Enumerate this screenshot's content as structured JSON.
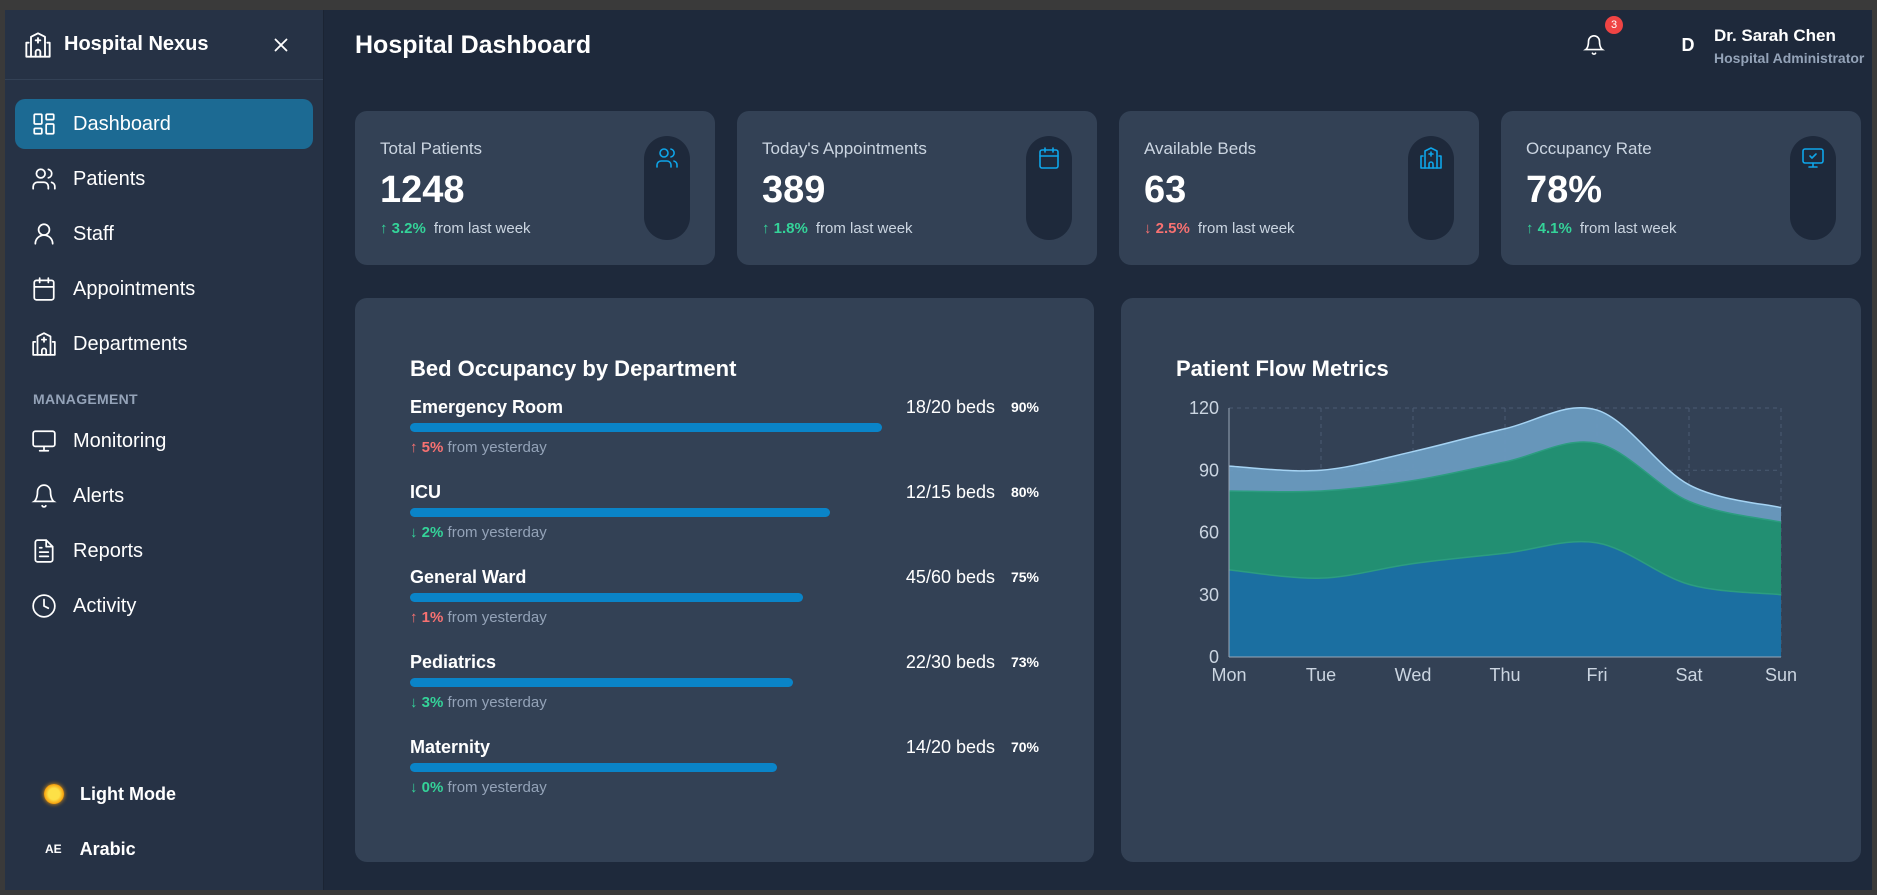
{
  "sidebar": {
    "brand": "Hospital Nexus",
    "items": [
      {
        "label": "Dashboard",
        "icon": "dashboard-icon",
        "active": true
      },
      {
        "label": "Patients",
        "icon": "patients-icon"
      },
      {
        "label": "Staff",
        "icon": "staff-icon"
      },
      {
        "label": "Appointments",
        "icon": "calendar-icon"
      },
      {
        "label": "Departments",
        "icon": "building-icon"
      }
    ],
    "section_label": "MANAGEMENT",
    "management": [
      {
        "label": "Monitoring",
        "icon": "monitor-icon"
      },
      {
        "label": "Alerts",
        "icon": "bell-icon"
      },
      {
        "label": "Reports",
        "icon": "report-icon"
      },
      {
        "label": "Activity",
        "icon": "clock-icon"
      }
    ],
    "theme_toggle": "Light Mode",
    "language_code": "AE",
    "language": "Arabic"
  },
  "header": {
    "title": "Hospital Dashboard",
    "notification_count": "3",
    "avatar_initial": "D",
    "user_name": "Dr. Sarah Chen",
    "user_role": "Hospital Administrator"
  },
  "stats": [
    {
      "label": "Total Patients",
      "value": "1248",
      "change": "↑ 3.2%",
      "direction": "up",
      "suffix": "from last week",
      "icon": "users-icon"
    },
    {
      "label": "Today's Appointments",
      "value": "389",
      "change": "↑ 1.8%",
      "direction": "up",
      "suffix": "from last week",
      "icon": "calendar-icon"
    },
    {
      "label": "Available Beds",
      "value": "63",
      "change": "↓ 2.5%",
      "direction": "down",
      "suffix": "from last week",
      "icon": "hospital-icon"
    },
    {
      "label": "Occupancy Rate",
      "value": "78%",
      "change": "↑ 4.1%",
      "direction": "up",
      "suffix": "from last week",
      "icon": "monitor-check-icon"
    }
  ],
  "beds_panel": {
    "title": "Bed Occupancy by Department",
    "departments": [
      {
        "name": "Emergency Room",
        "beds": "18/20 beds",
        "pct": "90%",
        "fill": 0.9,
        "change": "↑ 5%",
        "dir": "up",
        "suffix": "from yesterday"
      },
      {
        "name": "ICU",
        "beds": "12/15 beds",
        "pct": "80%",
        "fill": 0.8,
        "change": "↓ 2%",
        "dir": "down",
        "suffix": "from yesterday"
      },
      {
        "name": "General Ward",
        "beds": "45/60 beds",
        "pct": "75%",
        "fill": 0.75,
        "change": "↑ 1%",
        "dir": "up",
        "suffix": "from yesterday"
      },
      {
        "name": "Pediatrics",
        "beds": "22/30 beds",
        "pct": "73%",
        "fill": 0.73,
        "change": "↓ 3%",
        "dir": "down",
        "suffix": "from yesterday"
      },
      {
        "name": "Maternity",
        "beds": "14/20 beds",
        "pct": "70%",
        "fill": 0.7,
        "change": "↓ 0%",
        "dir": "down",
        "suffix": "from yesterday"
      }
    ]
  },
  "flow_panel": {
    "title": "Patient Flow Metrics"
  },
  "chart_data": {
    "type": "area",
    "title": "Patient Flow Metrics",
    "categories": [
      "Mon",
      "Tue",
      "Wed",
      "Thu",
      "Fri",
      "Sat",
      "Sun"
    ],
    "yticks": [
      "0",
      "30",
      "60",
      "90",
      "120"
    ],
    "ylim": [
      0,
      120
    ],
    "grid": true,
    "stacked": true,
    "series": [
      {
        "values": [
          42,
          38,
          45,
          50,
          55,
          35,
          30
        ],
        "color": "#1b6ea3"
      },
      {
        "values": [
          38,
          42,
          40,
          44,
          48,
          40,
          35
        ],
        "color": "#1f8e6e"
      },
      {
        "values": [
          12,
          10,
          14,
          16,
          16,
          8,
          7
        ],
        "color": "#6a9bc0"
      }
    ]
  },
  "colors": {
    "accent": "#1c6a93",
    "bar": "#0a84c8",
    "up": "#34d399",
    "down": "#f87171"
  }
}
